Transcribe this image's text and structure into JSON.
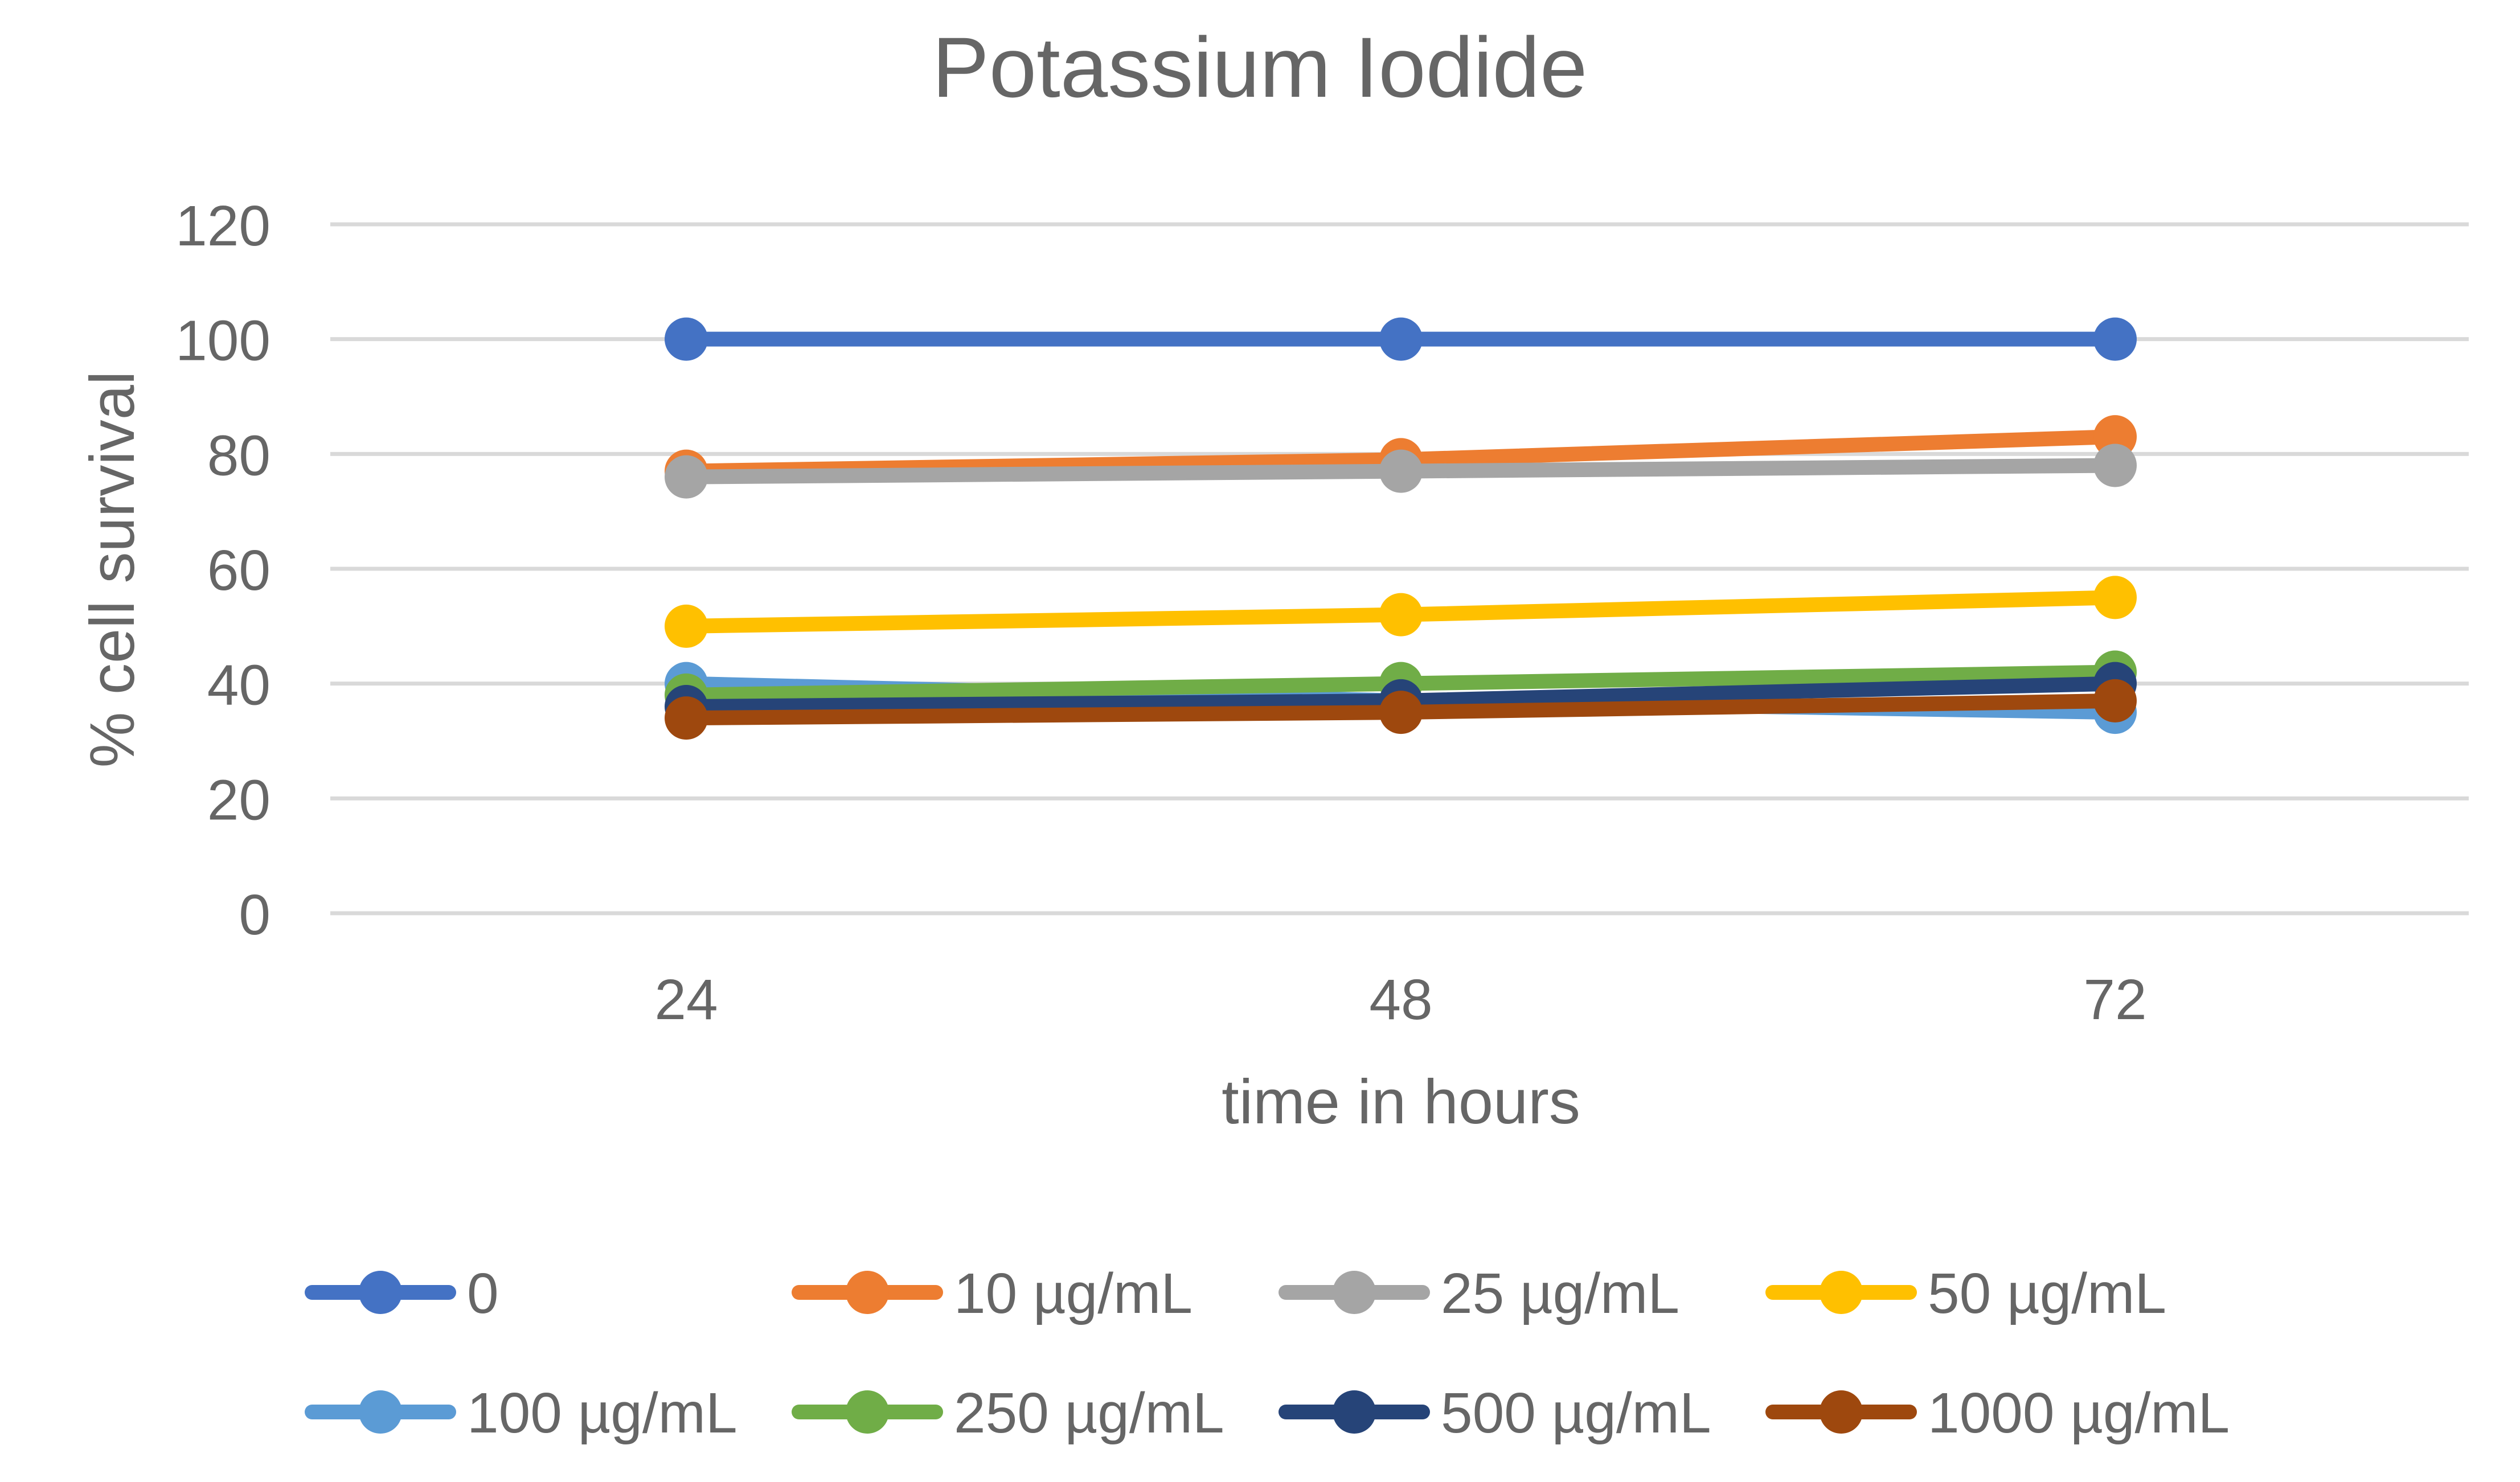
{
  "chart_data": {
    "type": "line",
    "title": "Potassium Iodide",
    "xlabel": "time in hours",
    "ylabel": "% cell survival",
    "categories": [
      "24",
      "48",
      "72"
    ],
    "ylim": [
      0,
      120
    ],
    "yticks": [
      0,
      20,
      40,
      60,
      80,
      100,
      120
    ],
    "grid": true,
    "legend_position": "bottom",
    "series": [
      {
        "name": "0",
        "values": [
          100,
          100,
          100
        ],
        "color": "#4472C4"
      },
      {
        "name": "10 µg/mL",
        "values": [
          77,
          79,
          83
        ],
        "color": "#ED7D31"
      },
      {
        "name": "25 µg/mL",
        "values": [
          76,
          77,
          78
        ],
        "color": "#A5A5A5"
      },
      {
        "name": "50 µg/mL",
        "values": [
          50,
          52,
          55
        ],
        "color": "#FFC000"
      },
      {
        "name": "100 µg/mL",
        "values": [
          40,
          37,
          35
        ],
        "color": "#5B9BD5"
      },
      {
        "name": "250 µg/mL",
        "values": [
          38,
          40,
          42
        ],
        "color": "#70AD47"
      },
      {
        "name": "500 µg/mL",
        "values": [
          36,
          37,
          40
        ],
        "color": "#264478"
      },
      {
        "name": "1000 µg/mL",
        "values": [
          34,
          35,
          37
        ],
        "color": "#9E480E"
      }
    ]
  }
}
